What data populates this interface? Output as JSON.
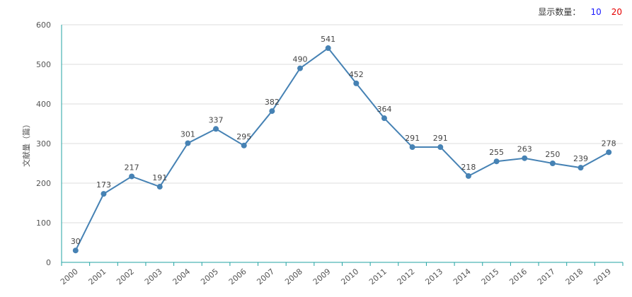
{
  "count_control": {
    "label": "显示数量：",
    "options": [
      {
        "label": "10",
        "color": "#1a1aff"
      },
      {
        "label": "20",
        "color": "#e60000"
      }
    ]
  },
  "colors": {
    "line": "#4682b4",
    "axis": "#22a3a3",
    "grid": "#dddddd"
  },
  "chart_data": {
    "type": "line",
    "ylabel": "文献量（篇）",
    "ylim": [
      0,
      600
    ],
    "yticks": [
      "0",
      "100",
      "200",
      "300",
      "400",
      "500",
      "600"
    ],
    "grid": true,
    "categories": [
      "2000",
      "2001",
      "2002",
      "2003",
      "2004",
      "2005",
      "2006",
      "2007",
      "2008",
      "2009",
      "2010",
      "2011",
      "2012",
      "2013",
      "2014",
      "2015",
      "2016",
      "2017",
      "2018",
      "2019"
    ],
    "series": [
      {
        "values": [
          30,
          173,
          217,
          191,
          301,
          337,
          295,
          382,
          490,
          541,
          452,
          364,
          291,
          291,
          218,
          255,
          263,
          250,
          239,
          278
        ]
      }
    ]
  }
}
